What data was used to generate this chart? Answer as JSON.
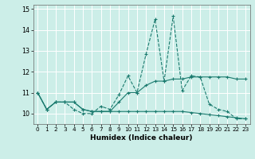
{
  "title": "",
  "xlabel": "Humidex (Indice chaleur)",
  "bg_color": "#cceee8",
  "line_color": "#1a7a6e",
  "grid_color": "#ffffff",
  "xlim": [
    -0.5,
    23.5
  ],
  "ylim": [
    9.5,
    15.2
  ],
  "yticks": [
    10,
    11,
    12,
    13,
    14,
    15
  ],
  "xticks": [
    0,
    1,
    2,
    3,
    4,
    5,
    6,
    7,
    8,
    9,
    10,
    11,
    12,
    13,
    14,
    15,
    16,
    17,
    18,
    19,
    20,
    21,
    22,
    23
  ],
  "series": [
    {
      "y": [
        11.0,
        10.2,
        10.55,
        10.55,
        10.2,
        10.0,
        10.0,
        10.35,
        10.2,
        10.9,
        11.8,
        11.0,
        12.85,
        14.5,
        11.55,
        14.65,
        11.1,
        11.8,
        11.75,
        10.45,
        10.2,
        10.1,
        9.75,
        9.75
      ],
      "linestyle": "--"
    },
    {
      "y": [
        11.0,
        10.2,
        10.55,
        10.55,
        10.55,
        10.2,
        10.1,
        10.1,
        10.1,
        10.55,
        11.0,
        11.0,
        11.35,
        11.55,
        11.55,
        11.65,
        11.65,
        11.75,
        11.75,
        11.75,
        11.75,
        11.75,
        11.65,
        11.65
      ],
      "linestyle": "-"
    },
    {
      "y": [
        11.0,
        10.2,
        10.55,
        10.55,
        10.55,
        10.2,
        10.1,
        10.1,
        10.1,
        10.1,
        10.1,
        10.1,
        10.1,
        10.1,
        10.1,
        10.1,
        10.1,
        10.05,
        10.0,
        9.95,
        9.9,
        9.85,
        9.8,
        9.75
      ],
      "linestyle": "-"
    }
  ]
}
